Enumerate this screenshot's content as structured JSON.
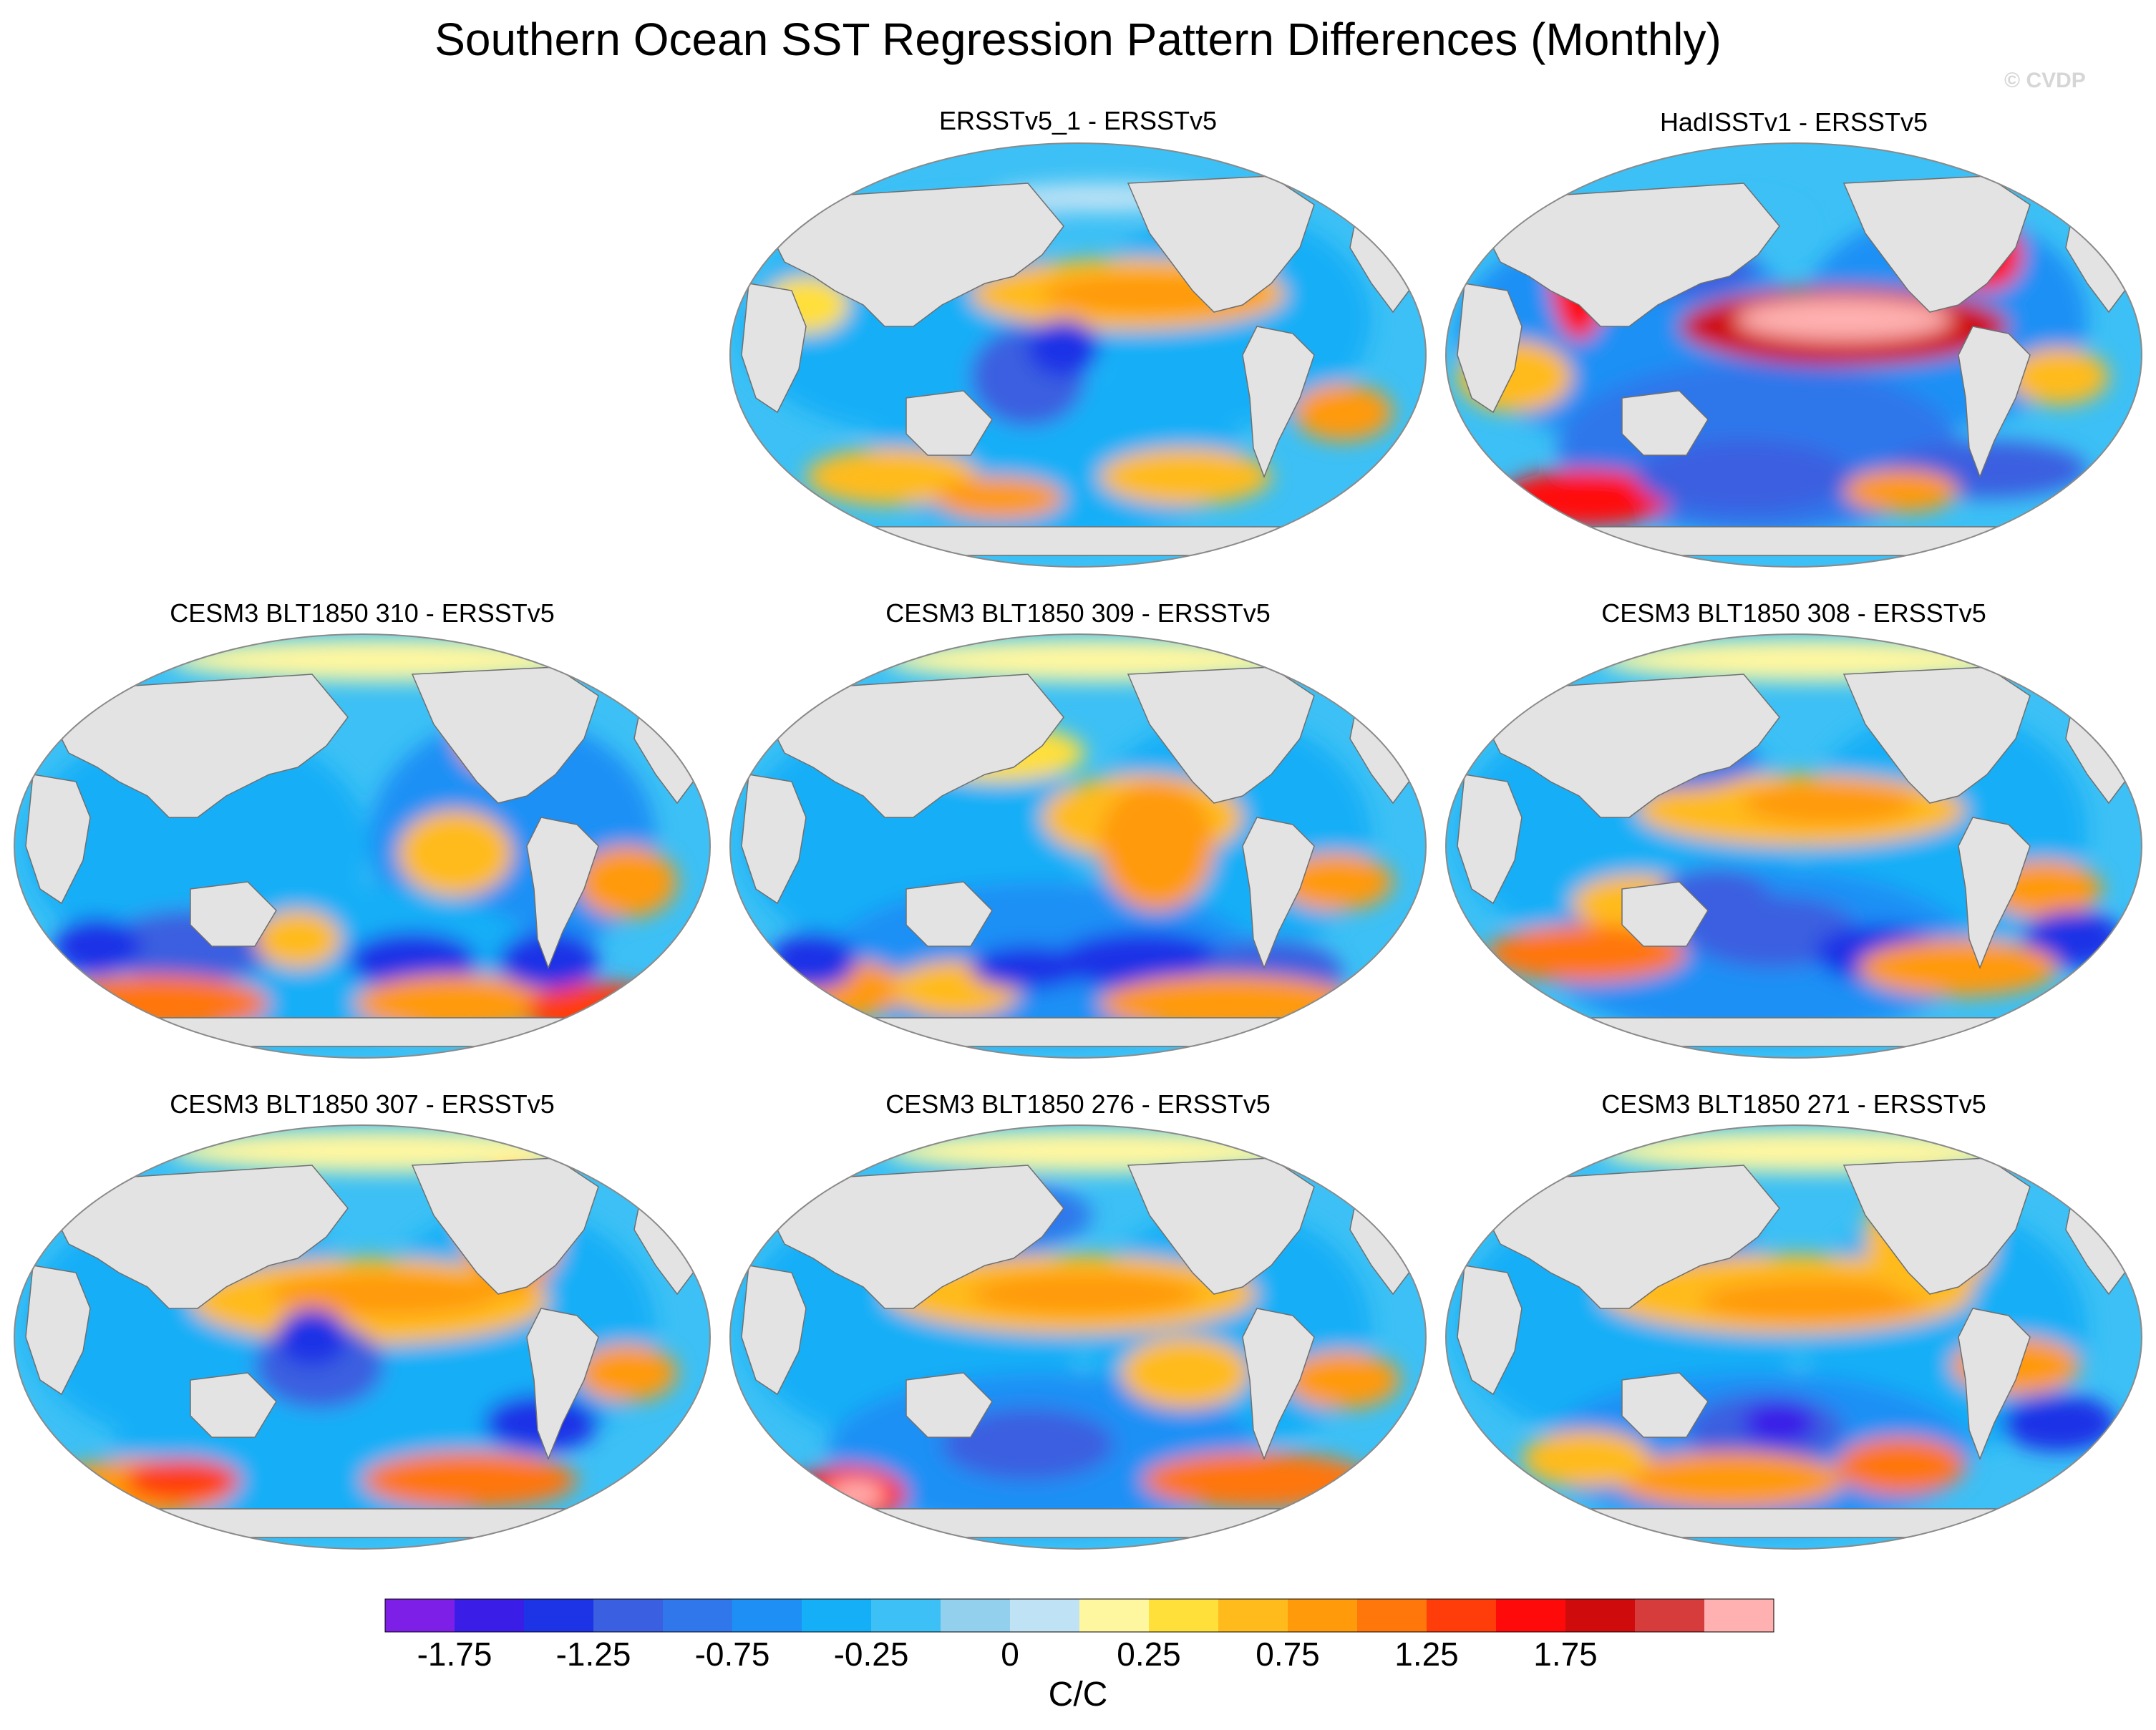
{
  "figure": {
    "title": "Southern Ocean SST Regression Pattern Differences (Monthly)",
    "watermark": "© CVDP"
  },
  "panels": [
    {
      "id": "p1",
      "title": "ERSSTv5_1 - ERSSTv5"
    },
    {
      "id": "p2",
      "title": "HadISSTv1 - ERSSTv5"
    },
    {
      "id": "p3",
      "title": "CESM3 BLT1850 310 - ERSSTv5"
    },
    {
      "id": "p4",
      "title": "CESM3 BLT1850 309 - ERSSTv5"
    },
    {
      "id": "p5",
      "title": "CESM3 BLT1850 308 - ERSSTv5"
    },
    {
      "id": "p6",
      "title": "CESM3 BLT1850 307 - ERSSTv5"
    },
    {
      "id": "p7",
      "title": "CESM3 BLT1850 276 - ERSSTv5"
    },
    {
      "id": "p8",
      "title": "CESM3 BLT1850 271 - ERSSTv5"
    }
  ],
  "colorbar": {
    "units": "C/C",
    "tick_labels": [
      "-1.75",
      "-1.25",
      "-0.75",
      "-0.25",
      "0",
      "0.25",
      "0.75",
      "1.25",
      "1.75"
    ],
    "colors": [
      "#7d1fe6",
      "#3a1ee8",
      "#1c33e6",
      "#3a5fe0",
      "#2f77eb",
      "#1e90f5",
      "#14aff7",
      "#3cc0f5",
      "#92d0ee",
      "#bfe3f5",
      "#fff7a0",
      "#ffdf3a",
      "#ffbb1c",
      "#ff9a0a",
      "#ff760a",
      "#ff3d0a",
      "#ff0a0a",
      "#cf0b0b",
      "#d63c3c",
      "#ffb0b0"
    ]
  }
}
